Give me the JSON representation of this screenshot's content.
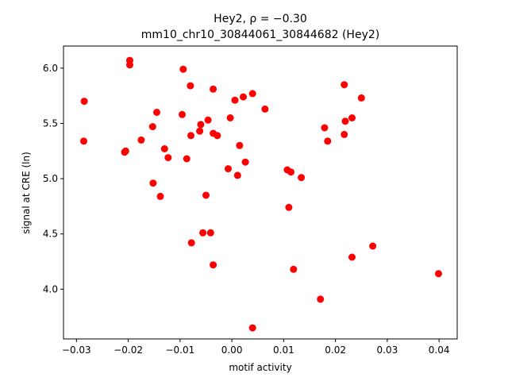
{
  "chart_data": {
    "type": "scatter",
    "title_line1": "Hey2, ρ = −0.30",
    "title_line2": "mm10_chr10_30844061_30844682 (Hey2)",
    "xlabel": "motif activity",
    "ylabel": "signal at CRE (ln)",
    "xlim": [
      -0.0325,
      0.0435
    ],
    "ylim": [
      3.55,
      6.2
    ],
    "xticks": [
      -0.03,
      -0.02,
      -0.01,
      0.0,
      0.01,
      0.02,
      0.03,
      0.04
    ],
    "xtick_labels": [
      "−0.03",
      "−0.02",
      "−0.01",
      "0.00",
      "0.01",
      "0.02",
      "0.03",
      "0.04"
    ],
    "yticks": [
      4.0,
      4.5,
      5.0,
      5.5,
      6.0
    ],
    "ytick_labels": [
      "4.0",
      "4.5",
      "5.0",
      "5.5",
      "6.0"
    ],
    "grid": false,
    "marker_color": "#ff0000",
    "points": [
      {
        "x": -0.0285,
        "y": 5.7
      },
      {
        "x": -0.0286,
        "y": 5.34
      },
      {
        "x": -0.0207,
        "y": 5.24
      },
      {
        "x": -0.0205,
        "y": 5.25
      },
      {
        "x": -0.0197,
        "y": 6.07
      },
      {
        "x": -0.0197,
        "y": 6.03
      },
      {
        "x": -0.0175,
        "y": 5.35
      },
      {
        "x": -0.0153,
        "y": 5.47
      },
      {
        "x": -0.0152,
        "y": 4.96
      },
      {
        "x": -0.0145,
        "y": 5.6
      },
      {
        "x": -0.0138,
        "y": 4.84
      },
      {
        "x": -0.013,
        "y": 5.27
      },
      {
        "x": -0.0123,
        "y": 5.19
      },
      {
        "x": -0.0096,
        "y": 5.58
      },
      {
        "x": -0.0094,
        "y": 5.99
      },
      {
        "x": -0.0087,
        "y": 5.18
      },
      {
        "x": -0.008,
        "y": 5.84
      },
      {
        "x": -0.0079,
        "y": 5.39
      },
      {
        "x": -0.0078,
        "y": 4.42
      },
      {
        "x": -0.0062,
        "y": 5.43
      },
      {
        "x": -0.006,
        "y": 5.49
      },
      {
        "x": -0.0056,
        "y": 4.51
      },
      {
        "x": -0.005,
        "y": 4.85
      },
      {
        "x": -0.0046,
        "y": 5.53
      },
      {
        "x": -0.0041,
        "y": 4.51
      },
      {
        "x": -0.0036,
        "y": 5.81
      },
      {
        "x": -0.0036,
        "y": 5.41
      },
      {
        "x": -0.0036,
        "y": 4.22
      },
      {
        "x": -0.0028,
        "y": 5.39
      },
      {
        "x": -0.0007,
        "y": 5.09
      },
      {
        "x": -0.0003,
        "y": 5.55
      },
      {
        "x": 0.0006,
        "y": 5.71
      },
      {
        "x": 0.0011,
        "y": 5.03
      },
      {
        "x": 0.0015,
        "y": 5.3
      },
      {
        "x": 0.0022,
        "y": 5.74
      },
      {
        "x": 0.0026,
        "y": 5.15
      },
      {
        "x": 0.004,
        "y": 5.77
      },
      {
        "x": 0.004,
        "y": 3.65
      },
      {
        "x": 0.0064,
        "y": 5.63
      },
      {
        "x": 0.0107,
        "y": 5.08
      },
      {
        "x": 0.011,
        "y": 4.74
      },
      {
        "x": 0.0114,
        "y": 5.06
      },
      {
        "x": 0.0119,
        "y": 4.18
      },
      {
        "x": 0.0134,
        "y": 5.01
      },
      {
        "x": 0.0171,
        "y": 3.91
      },
      {
        "x": 0.0179,
        "y": 5.46
      },
      {
        "x": 0.0185,
        "y": 5.34
      },
      {
        "x": 0.0217,
        "y": 5.85
      },
      {
        "x": 0.0217,
        "y": 5.4
      },
      {
        "x": 0.0219,
        "y": 5.52
      },
      {
        "x": 0.0232,
        "y": 5.55
      },
      {
        "x": 0.0232,
        "y": 4.29
      },
      {
        "x": 0.025,
        "y": 5.73
      },
      {
        "x": 0.0272,
        "y": 4.39
      },
      {
        "x": 0.0399,
        "y": 4.14
      }
    ]
  }
}
